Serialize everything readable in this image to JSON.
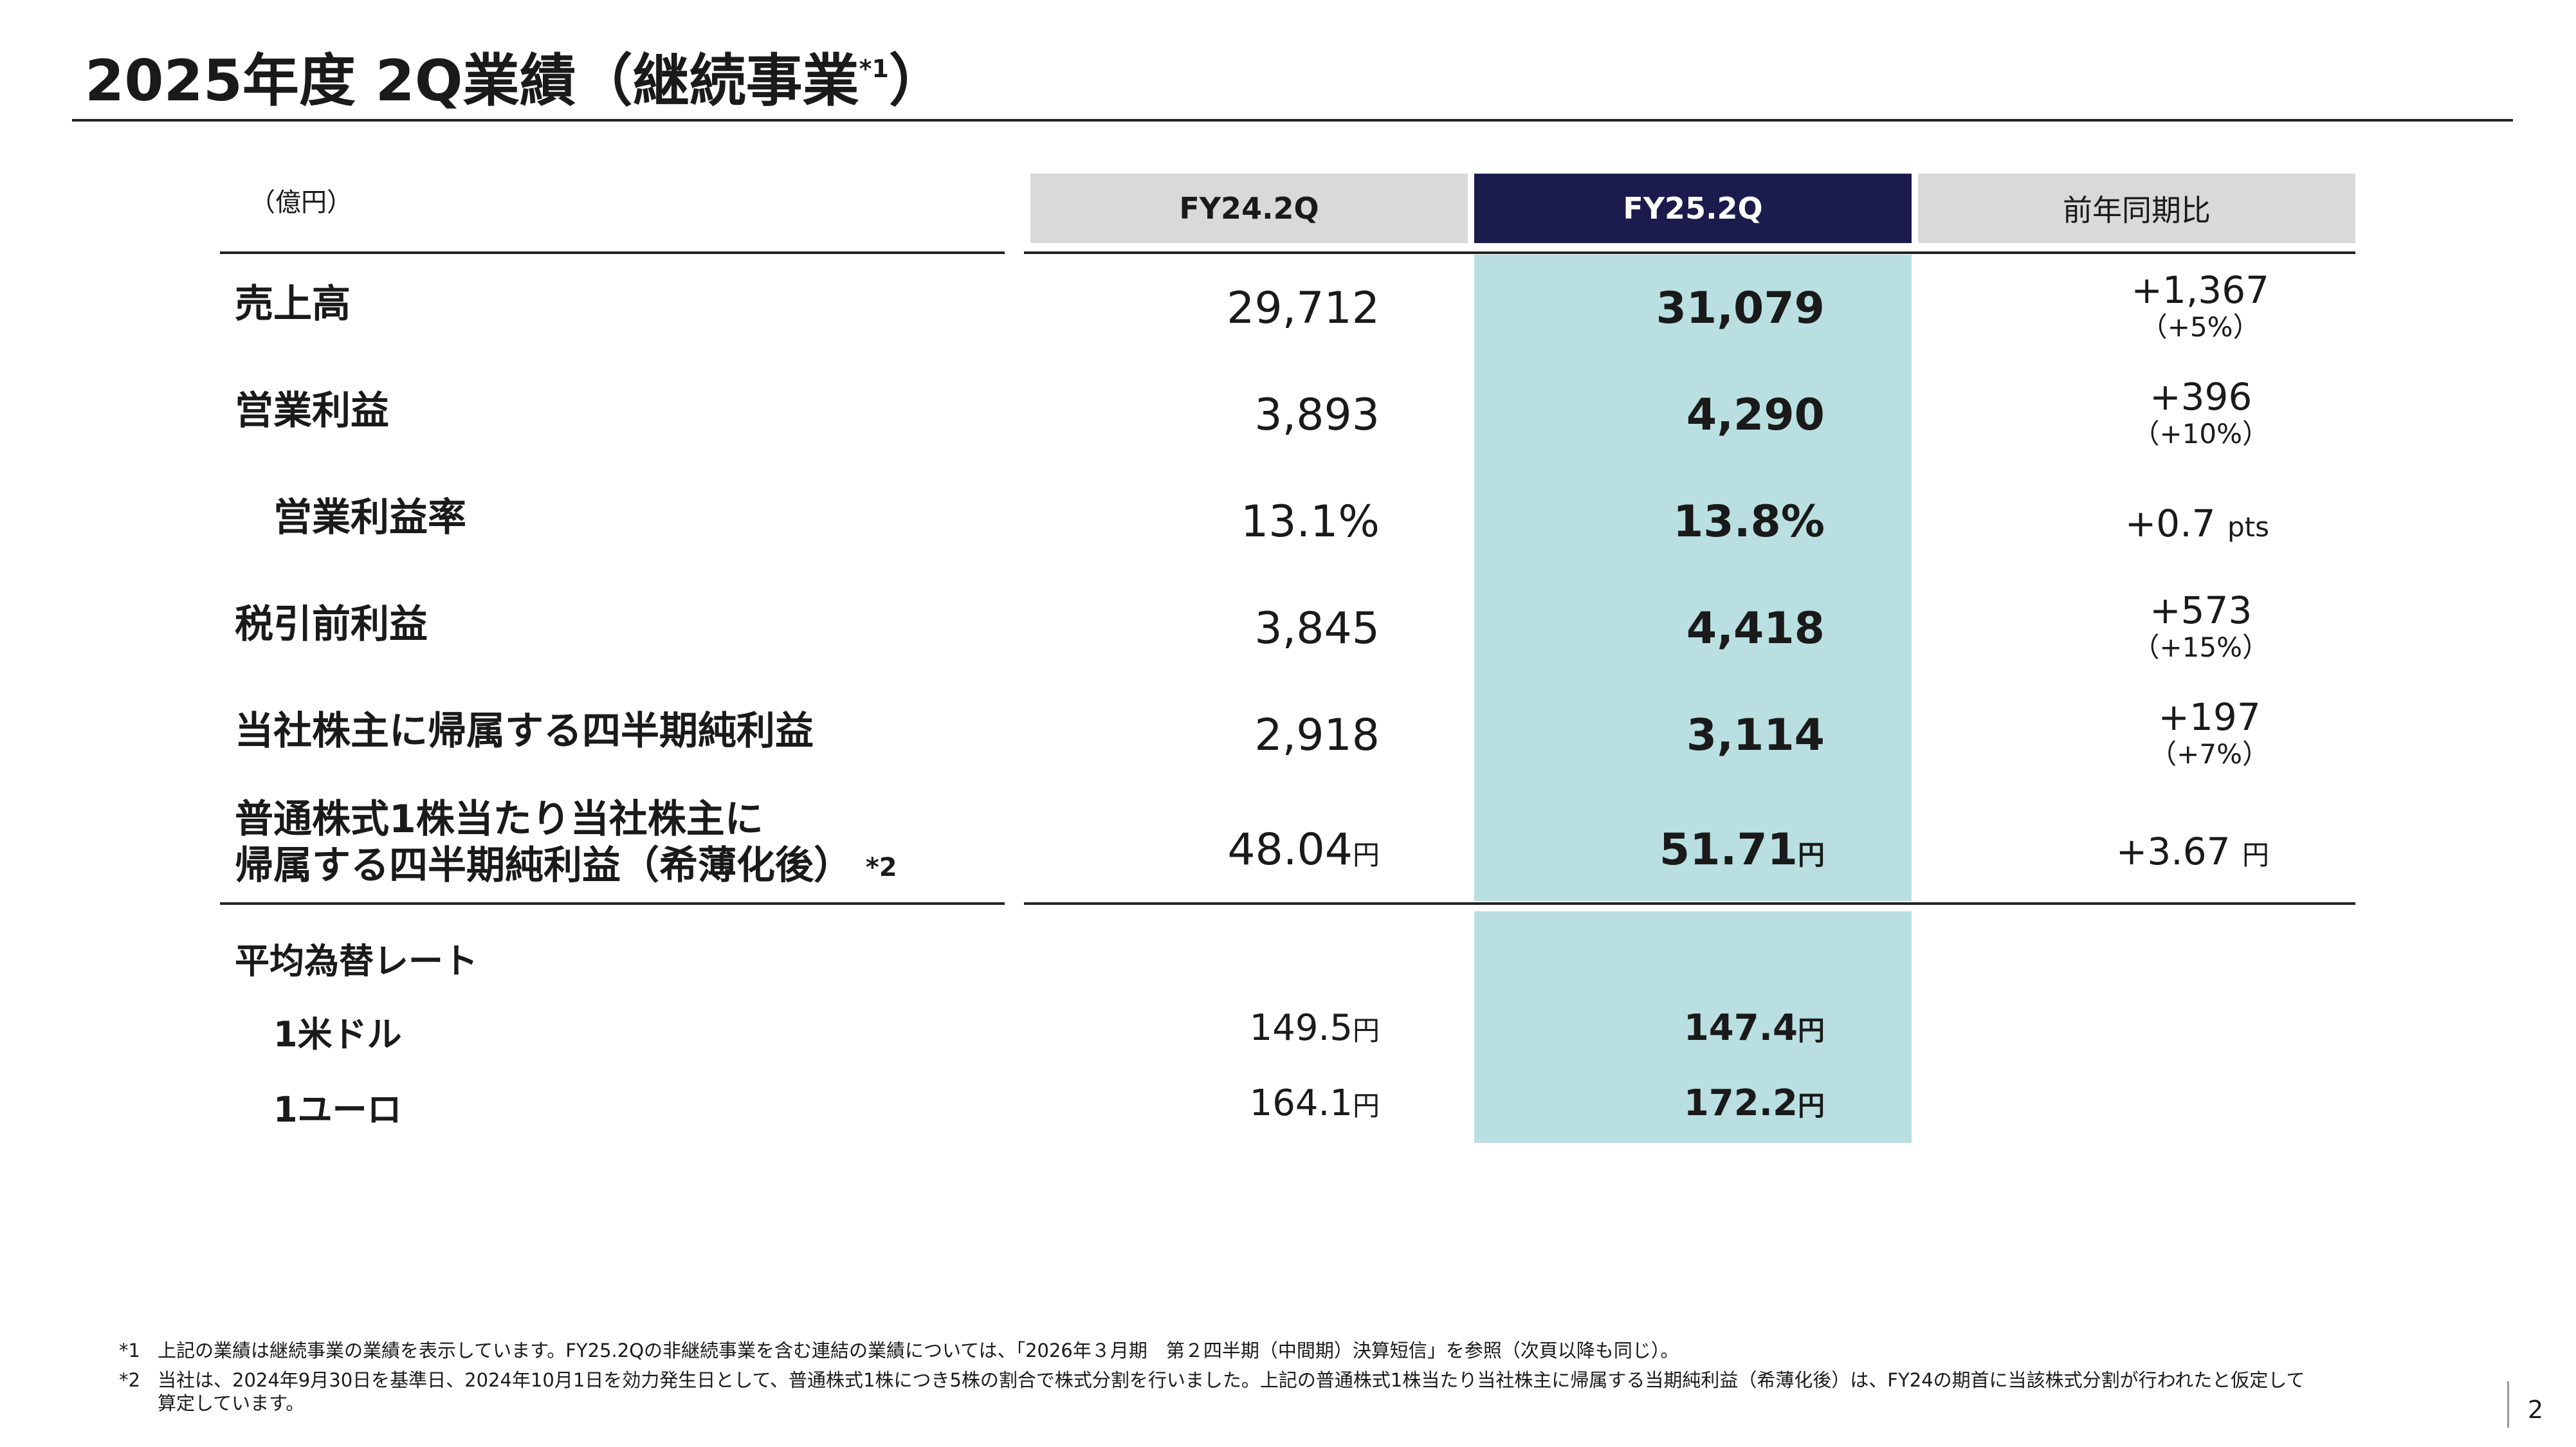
{
  "title": {
    "text": "2025年度 2Q業績（継続事業",
    "sup": "*1",
    "close": "）"
  },
  "table": {
    "unit": "（億円）",
    "headers": {
      "fy24": "FY24.2Q",
      "fy25": "FY25.2Q",
      "yoy": "前年同期比"
    },
    "rows": [
      {
        "label": "売上高",
        "fy24": "29,712",
        "fy25": "31,079",
        "yoy_diff": "+1,367",
        "yoy_pct": "（+5%）"
      },
      {
        "label": "営業利益",
        "fy24": "3,893",
        "fy25": "4,290",
        "yoy_diff": "+396",
        "yoy_pct": "（+10%）"
      },
      {
        "label": "営業利益率",
        "fy24": "13.1%",
        "fy25": "13.8%",
        "yoy_diff": "+0.7",
        "yoy_suffix": "pts"
      },
      {
        "label": "税引前利益",
        "fy24": "3,845",
        "fy25": "4,418",
        "yoy_diff": "+573",
        "yoy_pct": "（+15%）"
      },
      {
        "label": "当社株主に帰属する四半期純利益",
        "fy24": "2,918",
        "fy25": "3,114",
        "yoy_diff": "+197",
        "yoy_pct": "（+7%）"
      },
      {
        "label_line1": "普通株式1株当たり当社株主に",
        "label_line2": "帰属する四半期純利益（希薄化後）",
        "note": "*2",
        "fy24": "48.04",
        "fy25": "51.71",
        "unit": "円",
        "yoy_diff": "+3.67",
        "yoy_suffix": "円"
      }
    ],
    "fx": {
      "title": "平均為替レート",
      "rows": [
        {
          "label": "1米ドル",
          "fy24": "149.5",
          "fy25": "147.4",
          "unit": "円"
        },
        {
          "label": "1ユーロ",
          "fy24": "164.1",
          "fy25": "172.2",
          "unit": "円"
        }
      ]
    }
  },
  "footnotes": [
    {
      "mark": "*1",
      "text": "上記の業績は継続事業の業績を表示しています。FY25.2Qの非継続事業を含む連結の業績については、「2026年３月期　第２四半期（中間期）決算短信」を参照（次頁以降も同じ）。"
    },
    {
      "mark": "*2",
      "text": "当社は、2024年9月30日を基準日、2024年10月1日を効力発生日として、普通株式1株につき5株の割合で株式分割を行いました。上記の普通株式1株当たり当社株主に帰属する当期純利益（希薄化後）は、FY24の期首に当該株式分割が行われたと仮定して",
      "text2": "算定しています。"
    }
  ],
  "page_number": "2",
  "colors": {
    "fy25_header": "#1b1b4d",
    "highlight": "#b9dfe1",
    "header_gray": "#d9d9d9"
  }
}
